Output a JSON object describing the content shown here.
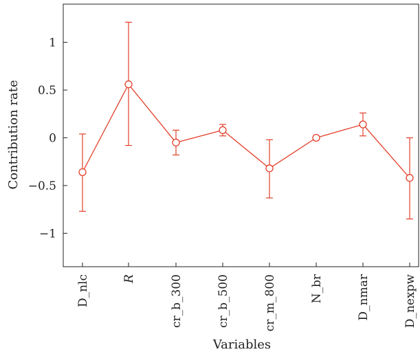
{
  "chart_data": {
    "type": "line",
    "categories": [
      "D_nlc",
      "R",
      "cr_b_300",
      "cr_b_500",
      "cr_m_800",
      "N_br",
      "D_nmar",
      "D_nexpw"
    ],
    "italic_categories": [
      "R"
    ],
    "series": [
      {
        "values": [
          -0.36,
          0.56,
          -0.05,
          0.08,
          -0.32,
          0.0,
          0.14,
          -0.42
        ],
        "error_low": [
          -0.77,
          -0.08,
          -0.18,
          0.02,
          -0.63,
          0.0,
          0.02,
          -0.85
        ],
        "error_high": [
          0.04,
          1.21,
          0.08,
          0.14,
          -0.02,
          0.0,
          0.26,
          0.0
        ],
        "color": "#e2402a",
        "marker": "open-circle"
      }
    ],
    "xlabel": "Variables",
    "ylabel": "Contribution rate",
    "ylim": [
      -1.35,
      1.4
    ],
    "yticks": [
      1,
      0.5,
      0,
      -0.5,
      -1
    ],
    "ytick_labels": [
      "1",
      "0.5",
      "0",
      "−0.5",
      "−1"
    ],
    "grid": false
  }
}
